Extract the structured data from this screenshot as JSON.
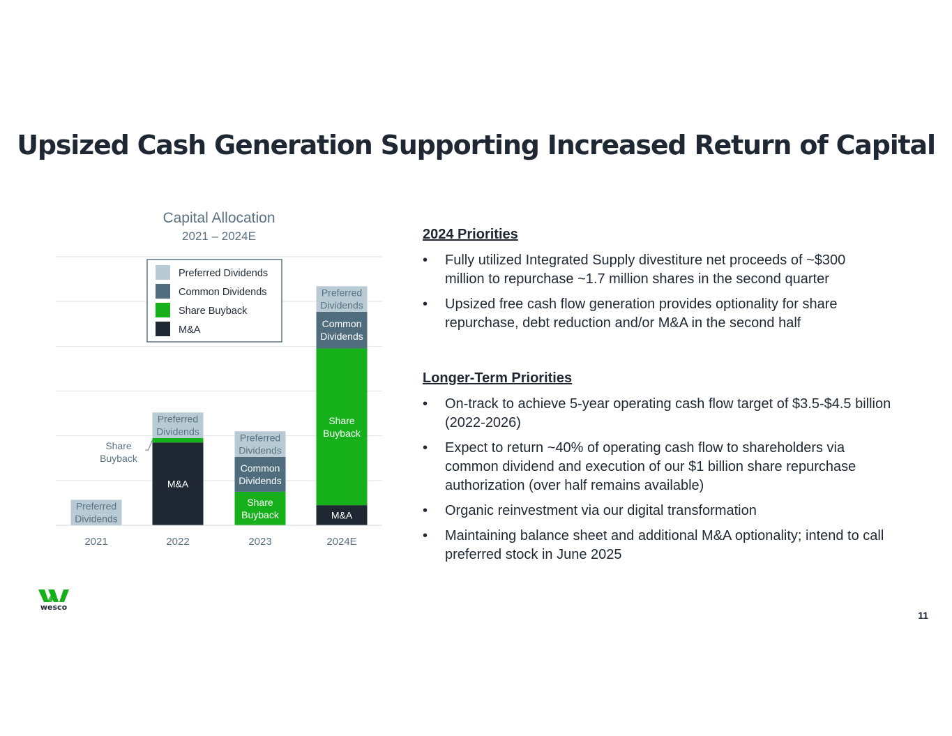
{
  "slide": {
    "title": "Upsized Cash Generation Supporting Increased Return of Capital",
    "page_number": "11",
    "logo_text": "wesco"
  },
  "colors": {
    "preferred_dividends": "#b8cad3",
    "common_dividends": "#4f6d7d",
    "share_buyback": "#16b11a",
    "ma": "#1f2733",
    "title": "#1f2733",
    "chart_subtitle": "#5b7282",
    "gridline": "#dfe3e6",
    "legend_border": "#5b7282"
  },
  "chart_data": {
    "type": "bar",
    "stacked": true,
    "title": "Capital Allocation",
    "subtitle": "2021 – 2024E",
    "categories": [
      "2021",
      "2022",
      "2023",
      "2024E"
    ],
    "ylim": [
      0,
      6
    ],
    "grid": true,
    "legend_position": "top-center",
    "legend": [
      "Preferred Dividends",
      "Common Dividends",
      "Share Buyback",
      "M&A"
    ],
    "series": [
      {
        "name": "M&A",
        "color_key": "ma",
        "values": [
          0,
          1.85,
          0,
          0.45
        ],
        "labels": [
          "",
          "M&A",
          "",
          "M&A"
        ],
        "text_color": "#ffffff"
      },
      {
        "name": "Share Buyback",
        "color_key": "share_buyback",
        "values": [
          0,
          0.1,
          0.75,
          3.5
        ],
        "labels": [
          "",
          "",
          "Share\nBuyback",
          "Share\nBuyback"
        ],
        "text_color": "#ffffff"
      },
      {
        "name": "Common Dividends",
        "color_key": "common_dividends",
        "values": [
          0,
          0,
          0.78,
          0.82
        ],
        "labels": [
          "",
          "",
          "Common\nDividends",
          "Common\nDividends"
        ],
        "text_color": "#ffffff"
      },
      {
        "name": "Preferred Dividends",
        "color_key": "preferred_dividends",
        "values": [
          0.57,
          0.57,
          0.57,
          0.57
        ],
        "labels": [
          "Preferred\nDividends",
          "Preferred\nDividends",
          "Preferred\nDividends",
          "Preferred\nDividends"
        ],
        "text_color": "#5b7282"
      }
    ],
    "annotations": [
      {
        "text": "Share\nBuyback",
        "category": "2022",
        "series": "Share Buyback"
      }
    ]
  },
  "priorities_2024": {
    "heading": "2024 Priorities",
    "bullets": [
      "Fully utilized Integrated Supply divestiture net proceeds of ~$300 million to repurchase ~1.7 million shares in the second quarter",
      "Upsized free cash flow generation provides optionality for share repurchase, debt reduction and/or M&A in the second half"
    ]
  },
  "priorities_longer_term": {
    "heading": "Longer-Term Priorities",
    "bullets": [
      "On-track to achieve 5-year operating cash flow target of $3.5-$4.5 billion (2022-2026)",
      "Expect to return ~40% of operating cash flow to shareholders via common dividend and execution of our $1 billion share repurchase authorization (over half remains available)",
      "Organic reinvestment via our digital transformation",
      "Maintaining balance sheet and additional M&A optionality; intend to call preferred stock in June 2025"
    ]
  }
}
